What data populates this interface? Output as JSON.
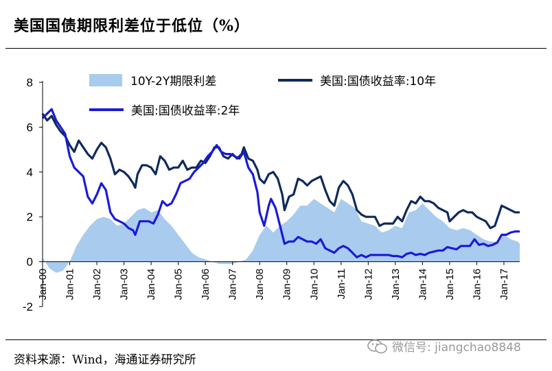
{
  "header": {
    "title": "美国国债期限利差位于低位（%）"
  },
  "footer": {
    "source": "资料来源：Wind，海通证券研究所",
    "watermark": "微信号: jiangchao8848"
  },
  "colors": {
    "spread": "#a9cbee",
    "y10": "#0e2a5c",
    "y2": "#1a1ad8"
  },
  "chart_data": {
    "type": "line",
    "title": "美国国债期限利差位于低位（%）",
    "xlabel": "",
    "ylabel": "",
    "ylim": [
      -2,
      8
    ],
    "yticks": [
      -2,
      0,
      2,
      4,
      6,
      8
    ],
    "xlim": [
      "2000-01",
      "2017-08"
    ],
    "xticks": [
      "Jan-00",
      "Jan-01",
      "Jan-02",
      "Jan-03",
      "Jan-04",
      "Jan-05",
      "Jan-06",
      "Jan-07",
      "Jan-08",
      "Jan-09",
      "Jan-10",
      "Jan-11",
      "Jan-12",
      "Jan-13",
      "Jan-14",
      "Jan-15",
      "Jan-16",
      "Jan-17"
    ],
    "legend_position": "top",
    "grid": false,
    "series": [
      {
        "name": "10Y-2Y期限利差",
        "style": "area",
        "points": [
          [
            "2000-01",
            0.2
          ],
          [
            "2000-04",
            -0.3
          ],
          [
            "2000-07",
            -0.5
          ],
          [
            "2000-10",
            -0.4
          ],
          [
            "2001-01",
            0.0
          ],
          [
            "2001-04",
            0.7
          ],
          [
            "2001-07",
            1.2
          ],
          [
            "2001-10",
            1.6
          ],
          [
            "2002-01",
            1.9
          ],
          [
            "2002-04",
            2.0
          ],
          [
            "2002-07",
            1.9
          ],
          [
            "2002-10",
            1.6
          ],
          [
            "2003-01",
            1.7
          ],
          [
            "2003-04",
            2.0
          ],
          [
            "2003-07",
            2.3
          ],
          [
            "2003-10",
            2.4
          ],
          [
            "2004-01",
            2.2
          ],
          [
            "2004-04",
            2.3
          ],
          [
            "2004-07",
            1.9
          ],
          [
            "2004-10",
            1.6
          ],
          [
            "2005-01",
            1.2
          ],
          [
            "2005-04",
            0.8
          ],
          [
            "2005-07",
            0.4
          ],
          [
            "2005-10",
            0.2
          ],
          [
            "2006-01",
            0.1
          ],
          [
            "2006-04",
            0.0
          ],
          [
            "2006-07",
            -0.1
          ],
          [
            "2006-10",
            -0.1
          ],
          [
            "2007-01",
            -0.1
          ],
          [
            "2007-04",
            0.0
          ],
          [
            "2007-07",
            0.1
          ],
          [
            "2007-10",
            0.5
          ],
          [
            "2008-01",
            1.2
          ],
          [
            "2008-04",
            1.6
          ],
          [
            "2008-07",
            1.3
          ],
          [
            "2008-10",
            1.6
          ],
          [
            "2009-01",
            1.8
          ],
          [
            "2009-04",
            2.1
          ],
          [
            "2009-07",
            2.5
          ],
          [
            "2009-10",
            2.5
          ],
          [
            "2010-01",
            2.8
          ],
          [
            "2010-04",
            2.6
          ],
          [
            "2010-07",
            2.4
          ],
          [
            "2010-10",
            2.2
          ],
          [
            "2011-01",
            2.8
          ],
          [
            "2011-04",
            2.6
          ],
          [
            "2011-07",
            2.4
          ],
          [
            "2011-10",
            1.8
          ],
          [
            "2012-01",
            1.7
          ],
          [
            "2012-04",
            1.6
          ],
          [
            "2012-07",
            1.3
          ],
          [
            "2012-10",
            1.4
          ],
          [
            "2013-01",
            1.6
          ],
          [
            "2013-04",
            1.5
          ],
          [
            "2013-07",
            2.2
          ],
          [
            "2013-10",
            2.3
          ],
          [
            "2014-01",
            2.6
          ],
          [
            "2014-04",
            2.3
          ],
          [
            "2014-07",
            2.0
          ],
          [
            "2014-10",
            1.8
          ],
          [
            "2015-01",
            1.5
          ],
          [
            "2015-04",
            1.4
          ],
          [
            "2015-07",
            1.5
          ],
          [
            "2015-10",
            1.4
          ],
          [
            "2016-01",
            1.2
          ],
          [
            "2016-04",
            1.0
          ],
          [
            "2016-07",
            0.9
          ],
          [
            "2016-10",
            0.9
          ],
          [
            "2017-01",
            1.2
          ],
          [
            "2017-04",
            1.0
          ],
          [
            "2017-07",
            0.9
          ],
          [
            "2017-08",
            0.8
          ]
        ]
      },
      {
        "name": "美国:国债收益率:10年",
        "style": "line",
        "points": [
          [
            "2000-01",
            6.6
          ],
          [
            "2000-03",
            6.3
          ],
          [
            "2000-05",
            6.5
          ],
          [
            "2000-07",
            6.1
          ],
          [
            "2000-09",
            5.8
          ],
          [
            "2000-11",
            5.6
          ],
          [
            "2001-01",
            5.2
          ],
          [
            "2001-03",
            4.9
          ],
          [
            "2001-05",
            5.4
          ],
          [
            "2001-07",
            5.1
          ],
          [
            "2001-09",
            4.8
          ],
          [
            "2001-11",
            4.6
          ],
          [
            "2002-01",
            5.0
          ],
          [
            "2002-03",
            5.3
          ],
          [
            "2002-05",
            5.1
          ],
          [
            "2002-07",
            4.6
          ],
          [
            "2002-09",
            3.9
          ],
          [
            "2002-11",
            4.1
          ],
          [
            "2003-01",
            4.0
          ],
          [
            "2003-03",
            3.8
          ],
          [
            "2003-05",
            3.5
          ],
          [
            "2003-06",
            3.3
          ],
          [
            "2003-07",
            3.9
          ],
          [
            "2003-09",
            4.3
          ],
          [
            "2003-11",
            4.3
          ],
          [
            "2004-01",
            4.2
          ],
          [
            "2004-03",
            3.9
          ],
          [
            "2004-05",
            4.7
          ],
          [
            "2004-07",
            4.5
          ],
          [
            "2004-09",
            4.1
          ],
          [
            "2004-11",
            4.2
          ],
          [
            "2005-01",
            4.2
          ],
          [
            "2005-03",
            4.5
          ],
          [
            "2005-05",
            4.1
          ],
          [
            "2005-07",
            4.2
          ],
          [
            "2005-09",
            4.2
          ],
          [
            "2005-11",
            4.5
          ],
          [
            "2006-01",
            4.4
          ],
          [
            "2006-03",
            4.7
          ],
          [
            "2006-05",
            5.1
          ],
          [
            "2006-07",
            5.1
          ],
          [
            "2006-09",
            4.7
          ],
          [
            "2006-11",
            4.6
          ],
          [
            "2007-01",
            4.8
          ],
          [
            "2007-03",
            4.6
          ],
          [
            "2007-05",
            4.8
          ],
          [
            "2007-06",
            5.1
          ],
          [
            "2007-08",
            4.6
          ],
          [
            "2007-10",
            4.5
          ],
          [
            "2007-12",
            4.1
          ],
          [
            "2008-01",
            3.7
          ],
          [
            "2008-03",
            3.5
          ],
          [
            "2008-05",
            3.9
          ],
          [
            "2008-07",
            4.0
          ],
          [
            "2008-09",
            3.7
          ],
          [
            "2008-11",
            3.0
          ],
          [
            "2008-12",
            2.3
          ],
          [
            "2009-02",
            2.9
          ],
          [
            "2009-04",
            3.0
          ],
          [
            "2009-06",
            3.7
          ],
          [
            "2009-08",
            3.6
          ],
          [
            "2009-10",
            3.4
          ],
          [
            "2009-12",
            3.6
          ],
          [
            "2010-02",
            3.7
          ],
          [
            "2010-04",
            3.8
          ],
          [
            "2010-06",
            3.2
          ],
          [
            "2010-08",
            2.7
          ],
          [
            "2010-10",
            2.5
          ],
          [
            "2010-12",
            3.3
          ],
          [
            "2011-02",
            3.6
          ],
          [
            "2011-04",
            3.4
          ],
          [
            "2011-06",
            3.0
          ],
          [
            "2011-08",
            2.3
          ],
          [
            "2011-10",
            2.1
          ],
          [
            "2011-12",
            2.0
          ],
          [
            "2012-02",
            2.0
          ],
          [
            "2012-04",
            2.0
          ],
          [
            "2012-06",
            1.6
          ],
          [
            "2012-08",
            1.7
          ],
          [
            "2012-10",
            1.7
          ],
          [
            "2012-12",
            1.7
          ],
          [
            "2013-02",
            2.0
          ],
          [
            "2013-04",
            1.8
          ],
          [
            "2013-06",
            2.3
          ],
          [
            "2013-08",
            2.7
          ],
          [
            "2013-10",
            2.6
          ],
          [
            "2013-12",
            2.9
          ],
          [
            "2014-02",
            2.7
          ],
          [
            "2014-04",
            2.7
          ],
          [
            "2014-06",
            2.6
          ],
          [
            "2014-08",
            2.4
          ],
          [
            "2014-10",
            2.3
          ],
          [
            "2014-12",
            2.2
          ],
          [
            "2015-01",
            1.8
          ],
          [
            "2015-03",
            2.0
          ],
          [
            "2015-05",
            2.2
          ],
          [
            "2015-07",
            2.3
          ],
          [
            "2015-09",
            2.2
          ],
          [
            "2015-11",
            2.2
          ],
          [
            "2016-01",
            2.0
          ],
          [
            "2016-03",
            1.9
          ],
          [
            "2016-05",
            1.8
          ],
          [
            "2016-07",
            1.5
          ],
          [
            "2016-09",
            1.6
          ],
          [
            "2016-11",
            2.2
          ],
          [
            "2016-12",
            2.5
          ],
          [
            "2017-02",
            2.4
          ],
          [
            "2017-04",
            2.3
          ],
          [
            "2017-06",
            2.2
          ],
          [
            "2017-08",
            2.2
          ]
        ]
      },
      {
        "name": "美国:国债收益率:2年",
        "style": "line",
        "points": [
          [
            "2000-01",
            6.4
          ],
          [
            "2000-03",
            6.6
          ],
          [
            "2000-05",
            6.8
          ],
          [
            "2000-07",
            6.3
          ],
          [
            "2000-09",
            6.0
          ],
          [
            "2000-11",
            5.7
          ],
          [
            "2001-01",
            4.7
          ],
          [
            "2001-03",
            4.2
          ],
          [
            "2001-05",
            4.0
          ],
          [
            "2001-07",
            3.8
          ],
          [
            "2001-09",
            2.9
          ],
          [
            "2001-11",
            2.6
          ],
          [
            "2002-01",
            3.0
          ],
          [
            "2002-03",
            3.5
          ],
          [
            "2002-05",
            3.2
          ],
          [
            "2002-07",
            2.2
          ],
          [
            "2002-09",
            1.9
          ],
          [
            "2002-11",
            1.8
          ],
          [
            "2003-01",
            1.7
          ],
          [
            "2003-03",
            1.5
          ],
          [
            "2003-05",
            1.4
          ],
          [
            "2003-06",
            1.2
          ],
          [
            "2003-08",
            1.8
          ],
          [
            "2003-10",
            1.8
          ],
          [
            "2003-12",
            1.8
          ],
          [
            "2004-02",
            1.7
          ],
          [
            "2004-04",
            2.1
          ],
          [
            "2004-06",
            2.7
          ],
          [
            "2004-08",
            2.5
          ],
          [
            "2004-10",
            2.6
          ],
          [
            "2004-12",
            3.0
          ],
          [
            "2005-02",
            3.5
          ],
          [
            "2005-04",
            3.6
          ],
          [
            "2005-06",
            3.7
          ],
          [
            "2005-08",
            4.0
          ],
          [
            "2005-10",
            4.2
          ],
          [
            "2005-12",
            4.4
          ],
          [
            "2006-02",
            4.7
          ],
          [
            "2006-04",
            4.9
          ],
          [
            "2006-06",
            5.2
          ],
          [
            "2006-08",
            4.9
          ],
          [
            "2006-10",
            4.8
          ],
          [
            "2006-12",
            4.8
          ],
          [
            "2007-02",
            4.7
          ],
          [
            "2007-04",
            4.6
          ],
          [
            "2007-06",
            4.9
          ],
          [
            "2007-08",
            4.2
          ],
          [
            "2007-10",
            3.9
          ],
          [
            "2007-12",
            3.1
          ],
          [
            "2008-01",
            2.2
          ],
          [
            "2008-03",
            1.6
          ],
          [
            "2008-05",
            2.5
          ],
          [
            "2008-06",
            2.8
          ],
          [
            "2008-08",
            2.4
          ],
          [
            "2008-10",
            1.6
          ],
          [
            "2008-12",
            0.8
          ],
          [
            "2009-02",
            0.9
          ],
          [
            "2009-04",
            0.9
          ],
          [
            "2009-06",
            1.1
          ],
          [
            "2009-08",
            1.0
          ],
          [
            "2009-10",
            0.9
          ],
          [
            "2009-12",
            0.9
          ],
          [
            "2010-02",
            0.8
          ],
          [
            "2010-04",
            1.0
          ],
          [
            "2010-06",
            0.6
          ],
          [
            "2010-08",
            0.5
          ],
          [
            "2010-10",
            0.4
          ],
          [
            "2010-12",
            0.6
          ],
          [
            "2011-02",
            0.7
          ],
          [
            "2011-04",
            0.6
          ],
          [
            "2011-06",
            0.4
          ],
          [
            "2011-08",
            0.2
          ],
          [
            "2011-10",
            0.3
          ],
          [
            "2011-12",
            0.2
          ],
          [
            "2012-02",
            0.3
          ],
          [
            "2012-04",
            0.3
          ],
          [
            "2012-06",
            0.3
          ],
          [
            "2012-08",
            0.3
          ],
          [
            "2012-10",
            0.3
          ],
          [
            "2012-12",
            0.25
          ],
          [
            "2013-02",
            0.25
          ],
          [
            "2013-04",
            0.2
          ],
          [
            "2013-06",
            0.35
          ],
          [
            "2013-08",
            0.4
          ],
          [
            "2013-10",
            0.3
          ],
          [
            "2013-12",
            0.35
          ],
          [
            "2014-02",
            0.3
          ],
          [
            "2014-04",
            0.4
          ],
          [
            "2014-06",
            0.45
          ],
          [
            "2014-08",
            0.5
          ],
          [
            "2014-10",
            0.5
          ],
          [
            "2014-12",
            0.65
          ],
          [
            "2015-02",
            0.6
          ],
          [
            "2015-04",
            0.55
          ],
          [
            "2015-06",
            0.7
          ],
          [
            "2015-08",
            0.7
          ],
          [
            "2015-10",
            0.7
          ],
          [
            "2015-12",
            1.0
          ],
          [
            "2016-02",
            0.75
          ],
          [
            "2016-04",
            0.8
          ],
          [
            "2016-06",
            0.7
          ],
          [
            "2016-08",
            0.75
          ],
          [
            "2016-10",
            0.85
          ],
          [
            "2016-12",
            1.2
          ],
          [
            "2017-02",
            1.2
          ],
          [
            "2017-04",
            1.3
          ],
          [
            "2017-06",
            1.35
          ],
          [
            "2017-08",
            1.35
          ]
        ]
      }
    ]
  }
}
